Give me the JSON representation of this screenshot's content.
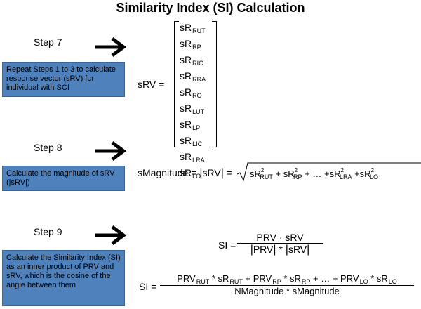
{
  "title": "Similarity Index (SI) Calculation",
  "steps": [
    {
      "label": "Step 7",
      "box": "Repeat Steps 1 to 3 to calculate response vector (sRV)  for individual with SCI"
    },
    {
      "label": "Step 8",
      "box": "Calculate the magnitude of sRV (|sRV|)"
    },
    {
      "label": "Step 9",
      "box": "Calculate the Similarity Index (SI) as an inner product of PRV and sRV, which is the cosine of the angle between them"
    }
  ],
  "vector": {
    "lhs": "sRV =",
    "items": [
      {
        "base": "sR",
        "sub": "RUT"
      },
      {
        "base": "sR",
        "sub": "RP"
      },
      {
        "base": "sR",
        "sub": "RIC"
      },
      {
        "base": "sR",
        "sub": "RRA"
      },
      {
        "base": "sR",
        "sub": "RO"
      },
      {
        "base": "sR",
        "sub": "LUT"
      },
      {
        "base": "sR",
        "sub": "LP"
      },
      {
        "base": "sR",
        "sub": "LIC"
      },
      {
        "base": "sR",
        "sub": "LRA"
      },
      {
        "base": "sR",
        "sub": "LO"
      }
    ]
  },
  "magnitude": {
    "lhs": "sMagnitude =",
    "abs": "sRV",
    "eq": "=",
    "t1": {
      "base": "sR",
      "sub": "RUT",
      "sup": "2"
    },
    "plus": "+",
    "t2": {
      "base": "sR",
      "sub": "RP",
      "sup": "2"
    },
    "dots": "+ … +",
    "t3": {
      "base": "sR",
      "sub": "LRA",
      "sup": "2"
    },
    "t4": {
      "base": "sR",
      "sub": "LO",
      "sup": "2"
    }
  },
  "si1": {
    "lhs": "SI =",
    "num": "PRV · sRV",
    "den_left": "PRV",
    "star": "*",
    "den_right": "sRV"
  },
  "si2": {
    "lhs": "SI =",
    "n1": "PRV",
    "n1sub": "RUT",
    "n2": " * sR",
    "n2sub": "RUT",
    "n3": " + PRV",
    "n3sub": "RP",
    "n4": " * sR",
    "n4sub": "RP",
    "n5": " + … + PRV",
    "n5sub": "LO",
    "n6": " * sR",
    "n6sub": "LO",
    "den": "NMagnitude * sMagnitude"
  }
}
